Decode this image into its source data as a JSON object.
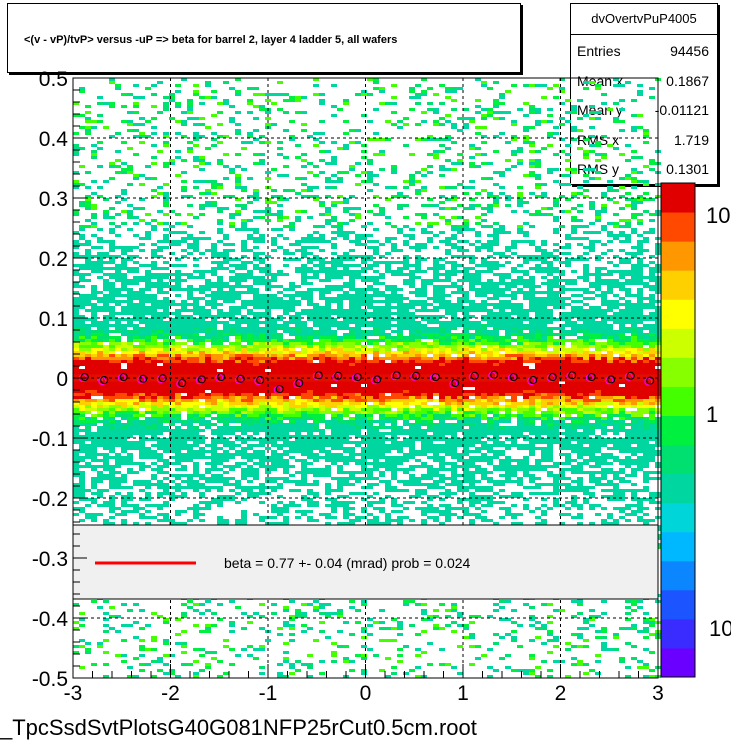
{
  "title": "<(v - vP)/tvP> versus  -uP => beta for barrel 2, layer 4 ladder 5, all wafers",
  "stats": {
    "name": "dvOvertvPuP4005",
    "rows": [
      {
        "label": "Entries",
        "value": "94456"
      },
      {
        "label": "Mean x",
        "value": "0.1867"
      },
      {
        "label": "Mean y",
        "value": "-0.01121"
      },
      {
        "label": "RMS x",
        "value": "1.719"
      },
      {
        "label": "RMS y",
        "value": "0.1301"
      }
    ]
  },
  "legend": {
    "text": "beta =     0.77 +-  0.04 (mrad) prob =  0.024",
    "line_color": "#ff0000"
  },
  "footer": "_TpcSsdSvtPlotsG40G081NFP25rCut0.5cm.root",
  "chart_data": {
    "type": "heatmap",
    "xlim": [
      -3,
      3
    ],
    "ylim": [
      -0.5,
      0.5
    ],
    "x_ticks": [
      "-3",
      "-2",
      "-1",
      "0",
      "1",
      "2",
      "3"
    ],
    "y_ticks": [
      "-0.5",
      "-0.4",
      "-0.3",
      "-0.2",
      "-0.1",
      "0",
      "0.1",
      "0.2",
      "0.3",
      "0.4",
      "0.5"
    ],
    "colorbar_ticks": [
      "10",
      "1",
      "10"
    ],
    "grid": true,
    "profile_points": [
      {
        "x": -2.9,
        "y": 0.0
      },
      {
        "x": -2.7,
        "y": -0.005
      },
      {
        "x": -2.5,
        "y": 0.0
      },
      {
        "x": -2.3,
        "y": -0.003
      },
      {
        "x": -2.1,
        "y": -0.002
      },
      {
        "x": -1.9,
        "y": -0.01
      },
      {
        "x": -1.7,
        "y": -0.004
      },
      {
        "x": -1.5,
        "y": 0.0
      },
      {
        "x": -1.3,
        "y": -0.003
      },
      {
        "x": -1.1,
        "y": -0.005
      },
      {
        "x": -0.9,
        "y": -0.02
      },
      {
        "x": -0.7,
        "y": -0.01
      },
      {
        "x": -0.5,
        "y": 0.003
      },
      {
        "x": -0.3,
        "y": 0.002
      },
      {
        "x": -0.1,
        "y": 0.0
      },
      {
        "x": 0.1,
        "y": -0.004
      },
      {
        "x": 0.3,
        "y": 0.003
      },
      {
        "x": 0.5,
        "y": 0.002
      },
      {
        "x": 0.7,
        "y": 0.0
      },
      {
        "x": 0.9,
        "y": -0.01
      },
      {
        "x": 1.1,
        "y": 0.002
      },
      {
        "x": 1.3,
        "y": 0.004
      },
      {
        "x": 1.5,
        "y": 0.0
      },
      {
        "x": 1.7,
        "y": -0.005
      },
      {
        "x": 1.9,
        "y": 0.0
      },
      {
        "x": 2.1,
        "y": 0.003
      },
      {
        "x": 2.3,
        "y": 0.0
      },
      {
        "x": 2.5,
        "y": -0.004
      },
      {
        "x": 2.7,
        "y": 0.002
      },
      {
        "x": 2.9,
        "y": -0.006
      }
    ],
    "colors": {
      "palette": [
        "#6a00ff",
        "#3a2cff",
        "#1c55ff",
        "#0c86ff",
        "#00b8ff",
        "#00d6d9",
        "#00d6a0",
        "#00e070",
        "#00f040",
        "#44ff00",
        "#88ff00",
        "#ccff00",
        "#ffff00",
        "#ffd000",
        "#ff9800",
        "#ff4800",
        "#e00000"
      ],
      "marker_outer": "#000000",
      "marker_inner": "#ff00ff"
    }
  }
}
